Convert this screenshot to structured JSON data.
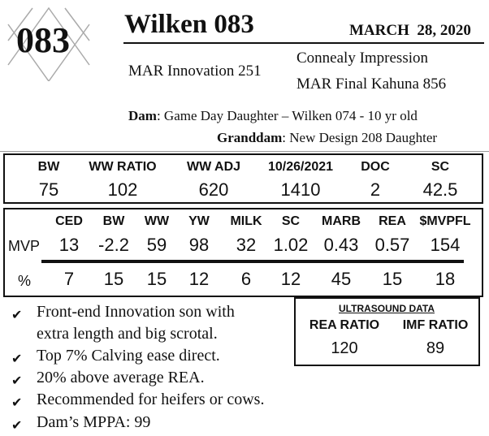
{
  "lot_number": "083",
  "title": "Wilken 083",
  "date": "MARCH  28, 2020",
  "sire": "MAR Innovation 251",
  "sire_sire": "Connealy Impression",
  "sire_dam": "MAR Final Kahuna 856",
  "dam_label": "Dam",
  "dam": ": Game Day Daughter – Wilken 074 - 10 yr old",
  "granddam_label": "Granddam",
  "granddam": ": New Design 208 Daughter",
  "performance": {
    "headers": [
      "BW",
      "WW RATIO",
      "WW ADJ",
      "10/26/2021",
      "DOC",
      "SC"
    ],
    "values": [
      "75",
      "102",
      "620",
      "1410",
      "2",
      "42.5"
    ]
  },
  "epd": {
    "headers": [
      "CED",
      "BW",
      "WW",
      "YW",
      "MILK",
      "SC",
      "MARB",
      "REA",
      "$MVPFL"
    ],
    "row_labels": [
      "MVP",
      "%"
    ],
    "mvp": [
      "13",
      "-2.2",
      "59",
      "98",
      "32",
      "1.02",
      "0.43",
      "0.57",
      "154"
    ],
    "percent": [
      "7",
      "15",
      "15",
      "12",
      "6",
      "12",
      "45",
      "15",
      "18"
    ]
  },
  "notes": [
    "Front-end Innovation son with",
    "extra length and big scrotal.",
    "Top 7% Calving ease direct.",
    "20% above average REA.",
    "Recommended for heifers or cows.",
    "Dam’s MPPA: 99"
  ],
  "check_icon": "✔",
  "ultrasound": {
    "title": "ULTRASOUND DATA",
    "headers": [
      "REA RATIO",
      "IMF RATIO"
    ],
    "values": [
      "120",
      "89"
    ]
  }
}
